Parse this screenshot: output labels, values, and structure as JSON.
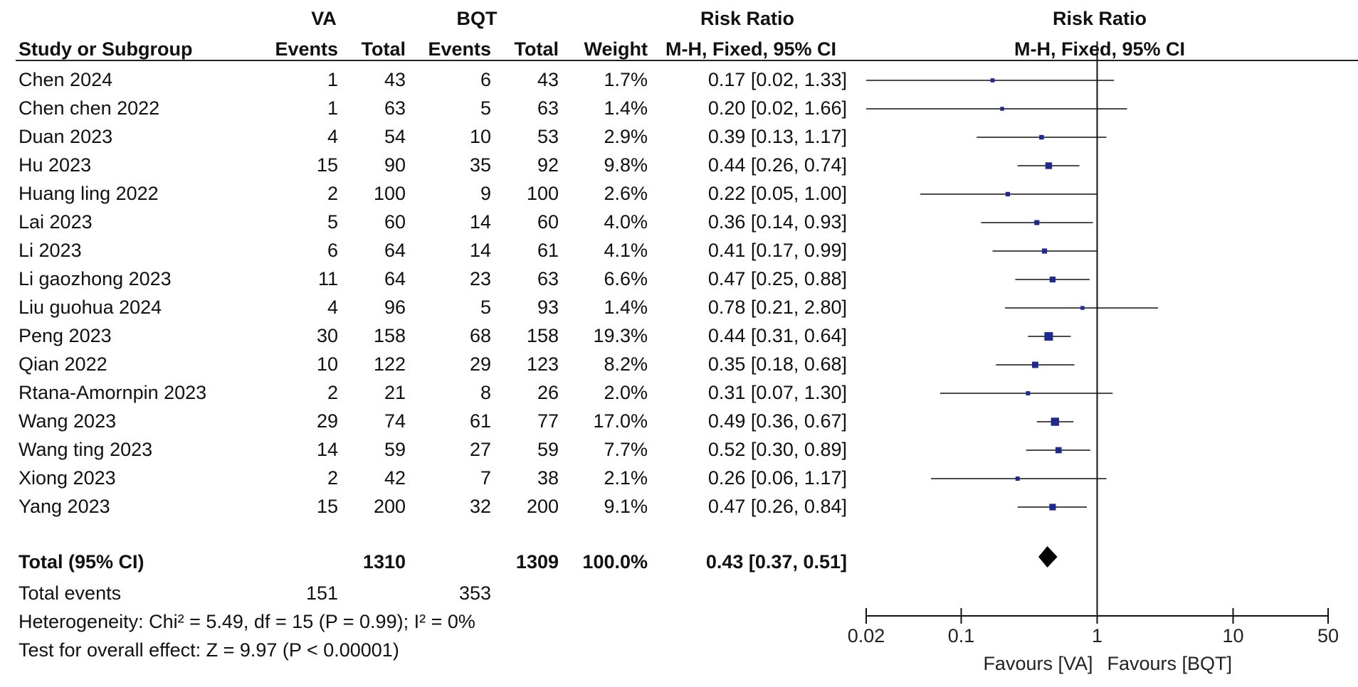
{
  "chart_data": {
    "type": "forest",
    "headers": {
      "group1": "VA",
      "group2": "BQT",
      "rr_group": "Risk Ratio",
      "rr_plot_group": "Risk Ratio",
      "study": "Study or Subgroup",
      "events1": "Events",
      "total1": "Total",
      "events2": "Events",
      "total2": "Total",
      "weight": "Weight",
      "rr_method": "M-H, Fixed, 95% CI",
      "rr_plot_method": "M-H, Fixed, 95% CI"
    },
    "studies": [
      {
        "name": "Chen 2024",
        "e1": "1",
        "n1": "43",
        "e2": "6",
        "n2": "43",
        "weight": "1.7%",
        "ci_text": "0.17 [0.02, 1.33]",
        "rr": 0.17,
        "lo": 0.02,
        "hi": 1.33,
        "w": 1.7
      },
      {
        "name": "Chen chen 2022",
        "e1": "1",
        "n1": "63",
        "e2": "5",
        "n2": "63",
        "weight": "1.4%",
        "ci_text": "0.20 [0.02, 1.66]",
        "rr": 0.2,
        "lo": 0.02,
        "hi": 1.66,
        "w": 1.4
      },
      {
        "name": "Duan 2023",
        "e1": "4",
        "n1": "54",
        "e2": "10",
        "n2": "53",
        "weight": "2.9%",
        "ci_text": "0.39 [0.13, 1.17]",
        "rr": 0.39,
        "lo": 0.13,
        "hi": 1.17,
        "w": 2.9
      },
      {
        "name": "Hu 2023",
        "e1": "15",
        "n1": "90",
        "e2": "35",
        "n2": "92",
        "weight": "9.8%",
        "ci_text": "0.44 [0.26, 0.74]",
        "rr": 0.44,
        "lo": 0.26,
        "hi": 0.74,
        "w": 9.8
      },
      {
        "name": "Huang ling 2022",
        "e1": "2",
        "n1": "100",
        "e2": "9",
        "n2": "100",
        "weight": "2.6%",
        "ci_text": "0.22 [0.05, 1.00]",
        "rr": 0.22,
        "lo": 0.05,
        "hi": 1.0,
        "w": 2.6
      },
      {
        "name": "Lai 2023",
        "e1": "5",
        "n1": "60",
        "e2": "14",
        "n2": "60",
        "weight": "4.0%",
        "ci_text": "0.36 [0.14, 0.93]",
        "rr": 0.36,
        "lo": 0.14,
        "hi": 0.93,
        "w": 4.0
      },
      {
        "name": "Li 2023",
        "e1": "6",
        "n1": "64",
        "e2": "14",
        "n2": "61",
        "weight": "4.1%",
        "ci_text": "0.41 [0.17, 0.99]",
        "rr": 0.41,
        "lo": 0.17,
        "hi": 0.99,
        "w": 4.1
      },
      {
        "name": "Li gaozhong 2023",
        "e1": "11",
        "n1": "64",
        "e2": "23",
        "n2": "63",
        "weight": "6.6%",
        "ci_text": "0.47 [0.25, 0.88]",
        "rr": 0.47,
        "lo": 0.25,
        "hi": 0.88,
        "w": 6.6
      },
      {
        "name": "Liu guohua 2024",
        "e1": "4",
        "n1": "96",
        "e2": "5",
        "n2": "93",
        "weight": "1.4%",
        "ci_text": "0.78 [0.21, 2.80]",
        "rr": 0.78,
        "lo": 0.21,
        "hi": 2.8,
        "w": 1.4
      },
      {
        "name": "Peng 2023",
        "e1": "30",
        "n1": "158",
        "e2": "68",
        "n2": "158",
        "weight": "19.3%",
        "ci_text": "0.44 [0.31, 0.64]",
        "rr": 0.44,
        "lo": 0.31,
        "hi": 0.64,
        "w": 19.3
      },
      {
        "name": "Qian 2022",
        "e1": "10",
        "n1": "122",
        "e2": "29",
        "n2": "123",
        "weight": "8.2%",
        "ci_text": "0.35 [0.18, 0.68]",
        "rr": 0.35,
        "lo": 0.18,
        "hi": 0.68,
        "w": 8.2
      },
      {
        "name": "Rtana-Amornpin 2023",
        "e1": "2",
        "n1": "21",
        "e2": "8",
        "n2": "26",
        "weight": "2.0%",
        "ci_text": "0.31 [0.07, 1.30]",
        "rr": 0.31,
        "lo": 0.07,
        "hi": 1.3,
        "w": 2.0
      },
      {
        "name": "Wang 2023",
        "e1": "29",
        "n1": "74",
        "e2": "61",
        "n2": "77",
        "weight": "17.0%",
        "ci_text": "0.49 [0.36, 0.67]",
        "rr": 0.49,
        "lo": 0.36,
        "hi": 0.67,
        "w": 17.0
      },
      {
        "name": "Wang ting 2023",
        "e1": "14",
        "n1": "59",
        "e2": "27",
        "n2": "59",
        "weight": "7.7%",
        "ci_text": "0.52 [0.30, 0.89]",
        "rr": 0.52,
        "lo": 0.3,
        "hi": 0.89,
        "w": 7.7
      },
      {
        "name": "Xiong 2023",
        "e1": "2",
        "n1": "42",
        "e2": "7",
        "n2": "38",
        "weight": "2.1%",
        "ci_text": "0.26 [0.06, 1.17]",
        "rr": 0.26,
        "lo": 0.06,
        "hi": 1.17,
        "w": 2.1
      },
      {
        "name": "Yang 2023",
        "e1": "15",
        "n1": "200",
        "e2": "32",
        "n2": "200",
        "weight": "9.1%",
        "ci_text": "0.47 [0.26, 0.84]",
        "rr": 0.47,
        "lo": 0.26,
        "hi": 0.84,
        "w": 9.1
      }
    ],
    "total": {
      "label": "Total (95% CI)",
      "n1": "1310",
      "n2": "1309",
      "weight": "100.0%",
      "ci_text": "0.43 [0.37, 0.51]",
      "rr": 0.43,
      "lo": 0.37,
      "hi": 0.51
    },
    "total_events": {
      "label": "Total events",
      "e1": "151",
      "e2": "353"
    },
    "heterogeneity": "Heterogeneity: Chi² = 5.49, df = 15 (P = 0.99); I² = 0%",
    "overall_effect": "Test for overall effect: Z = 9.97 (P < 0.00001)",
    "x_axis": {
      "scale": "log",
      "range": [
        0.02,
        50
      ],
      "ticks": [
        {
          "value": 0.02,
          "label": "0.02"
        },
        {
          "value": 0.1,
          "label": "0.1"
        },
        {
          "value": 1,
          "label": "1"
        },
        {
          "value": 10,
          "label": "10"
        },
        {
          "value": 50,
          "label": "50"
        }
      ]
    },
    "favours_left": "Favours [VA]",
    "favours_right": "Favours [BQT]",
    "marker_color": "#1f2a8c",
    "line_color": "#111111"
  }
}
